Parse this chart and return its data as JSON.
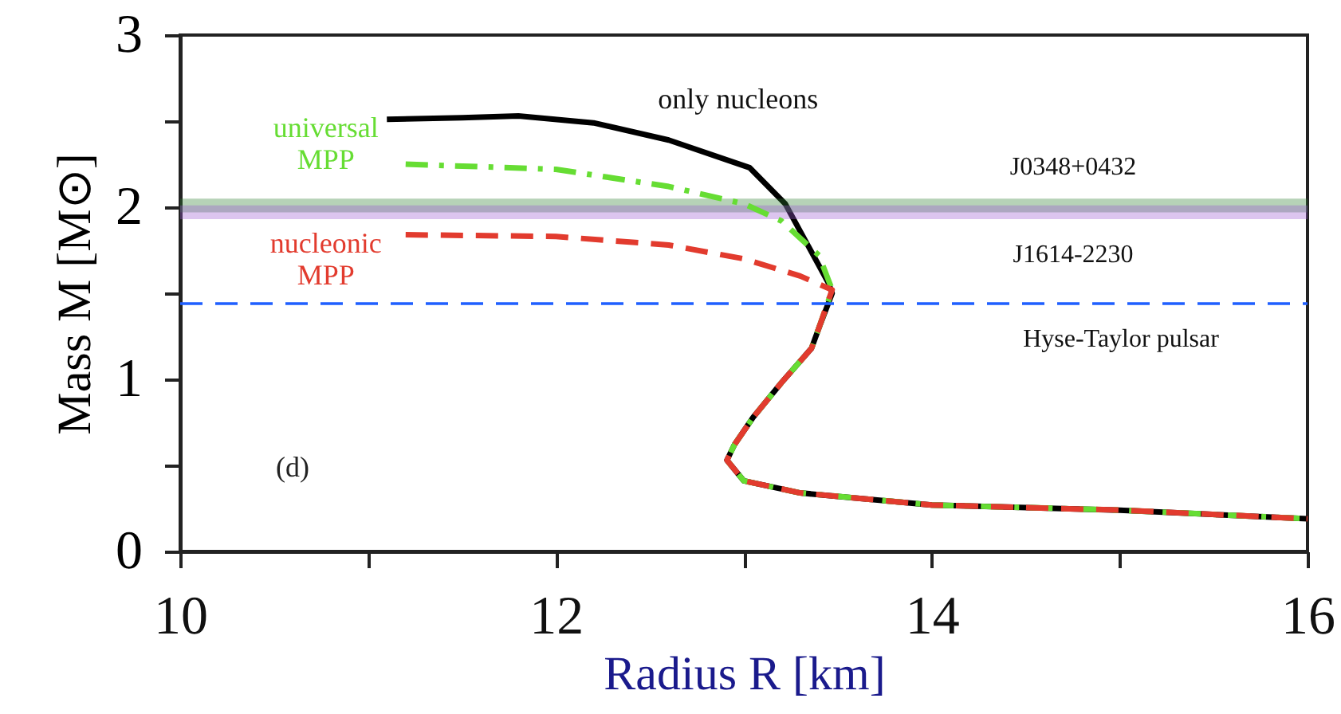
{
  "chart_data": {
    "type": "line",
    "xlabel": "Radius R [km]",
    "ylabel": "Mass M [M⊙]",
    "xlim": [
      10,
      16
    ],
    "ylim": [
      0,
      3
    ],
    "xticks": [
      10,
      {
        "value": 11,
        "label": null
      },
      12,
      {
        "value": 13,
        "label": null
      },
      14,
      {
        "value": 15,
        "label": null
      },
      16
    ],
    "yticks": [
      0,
      {
        "value": 0.5,
        "label": null
      },
      1,
      {
        "value": 1.5,
        "label": null
      },
      2,
      {
        "value": 2.5,
        "label": null
      },
      3
    ],
    "grid": false,
    "marker": "none",
    "series": [
      {
        "name": "only nucleons",
        "color": "#000000",
        "line_style": "solid",
        "x": [
          11.1,
          11.5,
          11.8,
          12.2,
          12.6,
          13.03,
          13.22,
          13.36,
          13.45,
          13.47,
          13.4,
          13.36,
          13.2,
          13.05,
          12.95,
          12.91,
          13.0,
          13.3,
          14.0,
          15.0,
          16.0
        ],
        "values": [
          2.51,
          2.52,
          2.53,
          2.49,
          2.39,
          2.23,
          2.02,
          1.74,
          1.56,
          1.5,
          1.3,
          1.18,
          0.98,
          0.78,
          0.62,
          0.53,
          0.41,
          0.34,
          0.27,
          0.24,
          0.19
        ]
      },
      {
        "name": "universal MPP",
        "color": "#66dd33",
        "line_style": "dashdot",
        "x": [
          11.2,
          12.0,
          12.6,
          13.0,
          13.2,
          13.4,
          13.47,
          13.4,
          13.36,
          13.2,
          13.05,
          12.95,
          12.91,
          13.0,
          13.3,
          14.0,
          15.0,
          16.0
        ],
        "values": [
          2.25,
          2.22,
          2.12,
          2.02,
          1.92,
          1.72,
          1.52,
          1.3,
          1.18,
          0.98,
          0.78,
          0.62,
          0.53,
          0.41,
          0.34,
          0.27,
          0.24,
          0.19
        ]
      },
      {
        "name": "nucleonic MPP",
        "color": "#e23b2e",
        "line_style": "dashed",
        "x": [
          11.2,
          12.0,
          12.6,
          13.0,
          13.3,
          13.47,
          13.4,
          13.36,
          13.2,
          13.05,
          12.95,
          12.91,
          13.0,
          13.3,
          14.0,
          15.0,
          16.0
        ],
        "values": [
          1.84,
          1.83,
          1.78,
          1.7,
          1.6,
          1.52,
          1.3,
          1.18,
          0.98,
          0.78,
          0.62,
          0.53,
          0.41,
          0.34,
          0.27,
          0.24,
          0.19
        ]
      }
    ],
    "bands": [
      {
        "axis": "y",
        "from": 1.97,
        "to": 2.05,
        "label": "J0348+0432",
        "color": "#2e7d32"
      },
      {
        "axis": "y",
        "from": 1.93,
        "to": 2.01,
        "label": "J1614-2230",
        "color": "#9b59d0"
      }
    ],
    "ref_lines": [
      {
        "axis": "y",
        "value": 1.44,
        "label": "Hyse-Taylor pulsar",
        "color": "#1f5fff",
        "line_style": "dashed"
      }
    ],
    "annotations": [
      "(d)"
    ]
  }
}
